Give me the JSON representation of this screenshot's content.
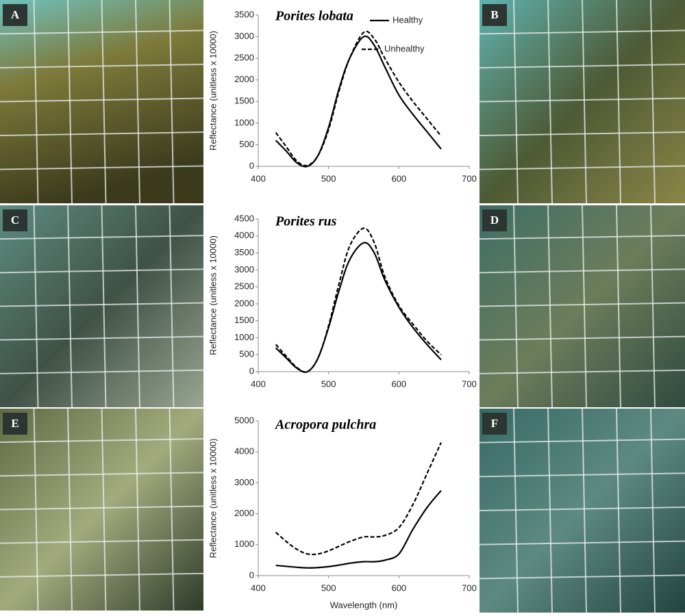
{
  "panel_labels": [
    "A",
    "B",
    "C",
    "D",
    "E",
    "F"
  ],
  "chart_data": [
    {
      "type": "line",
      "title": "Porites lobata",
      "ylabel": "Reflectance (unitless x 10000)",
      "x": [
        425,
        440,
        455,
        470,
        485,
        500,
        515,
        530,
        550,
        565,
        580,
        600,
        620,
        640,
        660
      ],
      "series": [
        {
          "name": "Healthy",
          "color": "#000000",
          "dashed": false,
          "values": [
            600,
            350,
            80,
            0,
            250,
            900,
            1800,
            2500,
            3000,
            2800,
            2300,
            1650,
            1200,
            800,
            400
          ]
        },
        {
          "name": "Unhealthy",
          "color": "#000000",
          "dashed": true,
          "values": [
            780,
            450,
            120,
            20,
            250,
            850,
            1750,
            2500,
            3100,
            2950,
            2500,
            1950,
            1500,
            1100,
            700
          ]
        }
      ],
      "xlim": [
        400,
        700
      ],
      "xticks": [
        400,
        500,
        600,
        700
      ],
      "ylim": [
        0,
        3500
      ],
      "yticks": [
        0,
        500,
        1000,
        1500,
        2000,
        2500,
        3000,
        3500
      ],
      "legend": "top-right"
    },
    {
      "type": "line",
      "title": "Porites rus",
      "ylabel": "Reflectance (unitless x 10000)",
      "x": [
        425,
        440,
        455,
        470,
        485,
        500,
        515,
        530,
        550,
        565,
        580,
        600,
        620,
        640,
        660
      ],
      "series": [
        {
          "color": "#000000",
          "dashed": false,
          "values": [
            700,
            400,
            100,
            0,
            400,
            1300,
            2400,
            3300,
            3800,
            3500,
            2700,
            1900,
            1300,
            800,
            350
          ]
        },
        {
          "color": "#000000",
          "dashed": true,
          "values": [
            800,
            450,
            120,
            0,
            400,
            1350,
            2600,
            3700,
            4230,
            3800,
            2800,
            1950,
            1400,
            900,
            500
          ]
        }
      ],
      "xlim": [
        400,
        700
      ],
      "xticks": [
        400,
        500,
        600,
        700
      ],
      "ylim": [
        0,
        4500
      ],
      "yticks": [
        0,
        500,
        1000,
        1500,
        2000,
        2500,
        3000,
        3500,
        4000,
        4500
      ]
    },
    {
      "type": "line",
      "title": "Acropora pulchra",
      "ylabel": "Reflectance (unitless x 10000)",
      "xlabel": "Wavelength (nm)",
      "x": [
        425,
        440,
        455,
        470,
        485,
        500,
        515,
        530,
        550,
        565,
        580,
        600,
        620,
        640,
        660
      ],
      "series": [
        {
          "color": "#000000",
          "dashed": false,
          "values": [
            330,
            300,
            270,
            250,
            260,
            290,
            340,
            400,
            450,
            450,
            500,
            700,
            1500,
            2200,
            2750
          ]
        },
        {
          "color": "#000000",
          "dashed": true,
          "values": [
            1400,
            1100,
            850,
            700,
            700,
            800,
            950,
            1100,
            1250,
            1250,
            1300,
            1550,
            2300,
            3300,
            4300
          ]
        }
      ],
      "xlim": [
        400,
        700
      ],
      "xticks": [
        400,
        500,
        600,
        700
      ],
      "ylim": [
        0,
        5000
      ],
      "yticks": [
        0,
        1000,
        2000,
        3000,
        4000,
        5000
      ]
    }
  ]
}
